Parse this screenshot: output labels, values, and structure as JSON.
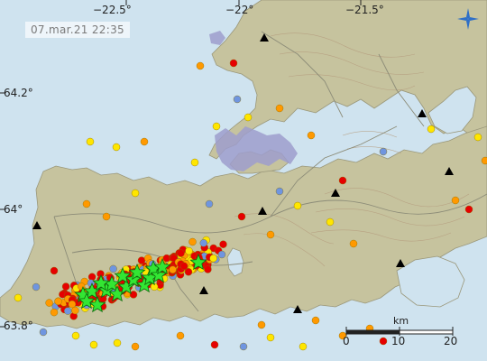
{
  "timestamp": "07.mar.21  22:35",
  "longitude_labels": [
    "−22.5°",
    "−22°",
    "−21.5°"
  ],
  "latitude_labels": [
    "64.2°",
    "64°",
    "63.8°"
  ],
  "scale_bar": {
    "unit": "km",
    "ticks": [
      "0",
      "10",
      "20"
    ]
  },
  "colors": {
    "sea": "#cfe3ef",
    "land": "#c6c39e",
    "glacier": "#9e9ecc",
    "lake": "#cfe3ef",
    "contour": "#b49a7c",
    "road": "#8c8c78",
    "quake_red": "#e60000",
    "quake_orange": "#ff9900",
    "quake_yellow": "#ffe600",
    "quake_blue": "#6f95e0",
    "large_quake_star": "#33e633",
    "station_triangle": "#000000",
    "logo": "#2e6fc7"
  },
  "legend_icons": {
    "large_quake": "star-icon",
    "station": "triangle-icon",
    "logo": "compass-logo-icon"
  }
}
